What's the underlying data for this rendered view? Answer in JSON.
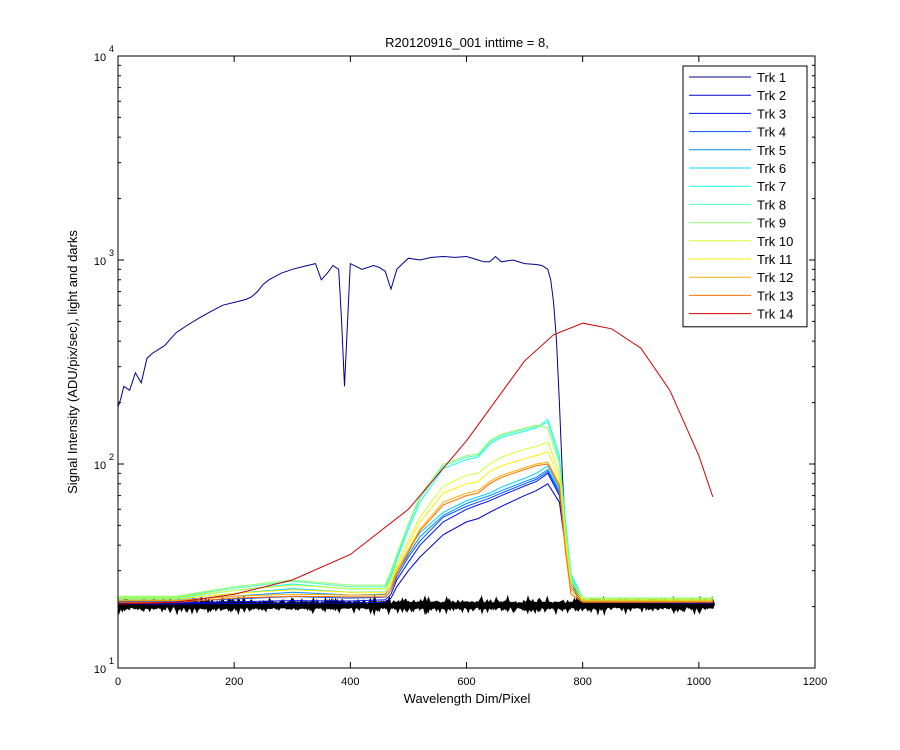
{
  "chart_data": {
    "type": "line",
    "title": "R20120916_001 inttime = 8,",
    "xlabel": "Wavelength Dim/Pixel",
    "ylabel": "Signal Intensity (ADU/pix/sec), light and darks",
    "xlim": [
      0,
      1200
    ],
    "ylim": [
      10,
      10000
    ],
    "yscale": "log",
    "xticks": [
      0,
      200,
      400,
      600,
      800,
      1000,
      1200
    ],
    "yticks": [
      {
        "base": "10",
        "exp": "1",
        "value": 10
      },
      {
        "base": "10",
        "exp": "2",
        "value": 100
      },
      {
        "base": "10",
        "exp": "3",
        "value": 1000
      },
      {
        "base": "10",
        "exp": "4",
        "value": 10000
      }
    ],
    "legend_position": "top-right",
    "series": [
      {
        "name": "Trk 1",
        "color": "#00008f",
        "x": [
          0,
          5,
          10,
          20,
          30,
          40,
          50,
          60,
          80,
          100,
          120,
          140,
          160,
          180,
          200,
          220,
          230,
          240,
          250,
          260,
          280,
          300,
          320,
          340,
          350,
          360,
          370,
          380,
          385,
          390,
          400,
          420,
          440,
          450,
          460,
          470,
          480,
          490,
          500,
          520,
          540,
          560,
          580,
          600,
          620,
          630,
          640,
          650,
          660,
          680,
          700,
          720,
          730,
          740,
          745,
          750,
          755,
          760,
          765,
          770,
          780,
          800,
          850,
          900,
          950,
          1000,
          1024
        ],
        "y": [
          190,
          210,
          240,
          230,
          280,
          250,
          330,
          350,
          380,
          440,
          480,
          520,
          560,
          600,
          620,
          640,
          660,
          700,
          760,
          800,
          860,
          900,
          930,
          960,
          800,
          860,
          940,
          900,
          500,
          240,
          960,
          900,
          940,
          920,
          880,
          720,
          900,
          960,
          1020,
          1000,
          1030,
          1040,
          1030,
          1040,
          1000,
          980,
          980,
          1040,
          980,
          1000,
          960,
          950,
          940,
          900,
          800,
          620,
          400,
          200,
          90,
          50,
          25,
          22,
          21,
          21,
          21,
          21,
          21
        ]
      },
      {
        "name": "Trk 2",
        "color": "#0000cf",
        "x": [
          0,
          100,
          200,
          300,
          400,
          460,
          470,
          480,
          500,
          520,
          560,
          600,
          620,
          640,
          660,
          700,
          720,
          740,
          760,
          770,
          780,
          800,
          1000,
          1024
        ],
        "y": [
          20.6,
          20.6,
          20.7,
          20.8,
          20.8,
          21,
          22,
          25,
          30,
          35,
          45,
          52,
          54,
          58,
          62,
          70,
          74,
          80,
          65,
          40,
          25,
          21,
          20.8,
          20.8
        ]
      },
      {
        "name": "Trk 3",
        "color": "#0010ff",
        "x": [
          0,
          100,
          200,
          300,
          400,
          460,
          470,
          480,
          500,
          520,
          560,
          600,
          620,
          640,
          660,
          700,
          720,
          740,
          760,
          770,
          780,
          800,
          1000,
          1024
        ],
        "y": [
          20.9,
          20.9,
          21.1,
          21.4,
          21.3,
          21.6,
          23,
          27,
          33,
          40,
          52,
          60,
          63,
          66,
          70,
          78,
          82,
          90,
          70,
          45,
          26,
          21,
          21,
          21
        ]
      },
      {
        "name": "Trk 4",
        "color": "#0050ff",
        "x": [
          0,
          100,
          200,
          300,
          400,
          460,
          470,
          480,
          500,
          520,
          560,
          600,
          620,
          640,
          660,
          700,
          720,
          740,
          760,
          770,
          780,
          800,
          1000,
          1024
        ],
        "y": [
          21.2,
          21.2,
          21.8,
          22.4,
          22,
          22.2,
          24,
          28,
          35,
          42,
          55,
          62,
          65,
          68,
          72,
          80,
          84,
          92,
          72,
          46,
          27,
          21.3,
          21.2,
          21.2
        ]
      },
      {
        "name": "Trk 5",
        "color": "#0090ff",
        "x": [
          0,
          100,
          200,
          300,
          400,
          460,
          470,
          480,
          500,
          520,
          560,
          600,
          620,
          640,
          660,
          700,
          720,
          740,
          760,
          770,
          780,
          800,
          1000,
          1024
        ],
        "y": [
          21.5,
          21.5,
          22.5,
          23.5,
          22.8,
          23,
          25,
          29,
          36,
          44,
          56,
          64,
          67,
          70,
          74,
          82,
          86,
          94,
          74,
          47,
          27,
          21.5,
          21.5,
          21.5
        ]
      },
      {
        "name": "Trk 6",
        "color": "#00d0ff",
        "x": [
          0,
          100,
          200,
          300,
          400,
          460,
          470,
          480,
          500,
          520,
          560,
          600,
          620,
          640,
          660,
          700,
          720,
          740,
          760,
          770,
          780,
          800,
          1000,
          1024
        ],
        "y": [
          21.8,
          21.8,
          23.2,
          24.5,
          23.5,
          23.6,
          26,
          30,
          38,
          46,
          58,
          66,
          69,
          72,
          77,
          85,
          90,
          98,
          76,
          48,
          28,
          21.8,
          21.8,
          21.8
        ]
      },
      {
        "name": "Trk 7",
        "color": "#10ffef",
        "x": [
          0,
          100,
          200,
          300,
          400,
          460,
          470,
          480,
          500,
          520,
          560,
          600,
          620,
          640,
          660,
          700,
          720,
          740,
          760,
          770,
          780,
          800,
          1000,
          1024
        ],
        "y": [
          22,
          22,
          24,
          25.8,
          24.4,
          24.5,
          28,
          34,
          48,
          65,
          95,
          105,
          108,
          125,
          135,
          145,
          150,
          165,
          110,
          55,
          29,
          22,
          22,
          22
        ]
      },
      {
        "name": "Trk 8",
        "color": "#50ffaf",
        "x": [
          0,
          100,
          200,
          300,
          400,
          460,
          470,
          480,
          500,
          520,
          560,
          600,
          620,
          640,
          660,
          700,
          720,
          740,
          760,
          770,
          780,
          800,
          1000,
          1024
        ],
        "y": [
          22.3,
          22.3,
          24.6,
          26.6,
          25,
          25,
          29,
          35,
          50,
          68,
          98,
          108,
          110,
          128,
          138,
          148,
          152,
          160,
          105,
          52,
          28,
          22,
          22,
          22
        ]
      },
      {
        "name": "Trk 9",
        "color": "#90ff6f",
        "x": [
          0,
          100,
          200,
          300,
          400,
          460,
          470,
          480,
          500,
          520,
          560,
          600,
          620,
          640,
          660,
          700,
          720,
          740,
          760,
          770,
          780,
          800,
          1000,
          1024
        ],
        "y": [
          22.5,
          22.5,
          25,
          27,
          25.5,
          25.5,
          30,
          36,
          51,
          70,
          100,
          110,
          112,
          130,
          140,
          150,
          155,
          150,
          100,
          50,
          27,
          22,
          22,
          22
        ]
      },
      {
        "name": "Trk 10",
        "color": "#cfff30",
        "x": [
          0,
          100,
          200,
          300,
          400,
          460,
          470,
          480,
          500,
          520,
          560,
          600,
          620,
          640,
          660,
          700,
          720,
          740,
          760,
          770,
          780,
          800,
          1000,
          1024
        ],
        "y": [
          22.2,
          22.2,
          24,
          25.5,
          24.5,
          24.5,
          27,
          32,
          42,
          55,
          78,
          88,
          90,
          100,
          108,
          118,
          122,
          128,
          90,
          45,
          26,
          21.8,
          21.8,
          21.8
        ]
      },
      {
        "name": "Trk 11",
        "color": "#ffef00",
        "x": [
          0,
          100,
          200,
          300,
          400,
          460,
          470,
          480,
          500,
          520,
          560,
          600,
          620,
          640,
          660,
          700,
          720,
          740,
          760,
          770,
          780,
          800,
          1000,
          1024
        ],
        "y": [
          21.8,
          21.8,
          23.2,
          24.2,
          23.5,
          23.5,
          26,
          31,
          40,
          52,
          72,
          80,
          82,
          92,
          98,
          106,
          110,
          115,
          85,
          42,
          25,
          21.5,
          21.5,
          21.5
        ]
      },
      {
        "name": "Trk 12",
        "color": "#ffaf00",
        "x": [
          0,
          100,
          200,
          300,
          400,
          460,
          470,
          480,
          500,
          520,
          560,
          600,
          620,
          640,
          660,
          700,
          720,
          740,
          760,
          770,
          780,
          800,
          1000,
          1024
        ],
        "y": [
          21.4,
          21.4,
          22.5,
          23,
          22.8,
          22.8,
          25,
          30,
          38,
          48,
          65,
          72,
          74,
          82,
          88,
          96,
          100,
          102,
          80,
          40,
          24,
          21.2,
          21.2,
          21.2
        ]
      },
      {
        "name": "Trk 13",
        "color": "#ff6f00",
        "x": [
          0,
          100,
          200,
          300,
          400,
          460,
          470,
          480,
          500,
          520,
          560,
          600,
          620,
          640,
          660,
          700,
          720,
          740,
          760,
          770,
          780,
          800,
          1000,
          1024
        ],
        "y": [
          21,
          21,
          22,
          22.5,
          22.3,
          22.3,
          24,
          29,
          37,
          47,
          63,
          70,
          72,
          80,
          86,
          94,
          98,
          100,
          78,
          38,
          23,
          21,
          21,
          21
        ]
      },
      {
        "name": "Trk 14",
        "color": "#cf0000",
        "x": [
          0,
          100,
          200,
          300,
          400,
          500,
          600,
          700,
          750,
          800,
          850,
          900,
          950,
          1000,
          1024
        ],
        "y": [
          20.6,
          21,
          23,
          27,
          36,
          60,
          130,
          320,
          430,
          490,
          460,
          370,
          230,
          110,
          69
        ]
      }
    ],
    "darks_y": 20.3
  }
}
